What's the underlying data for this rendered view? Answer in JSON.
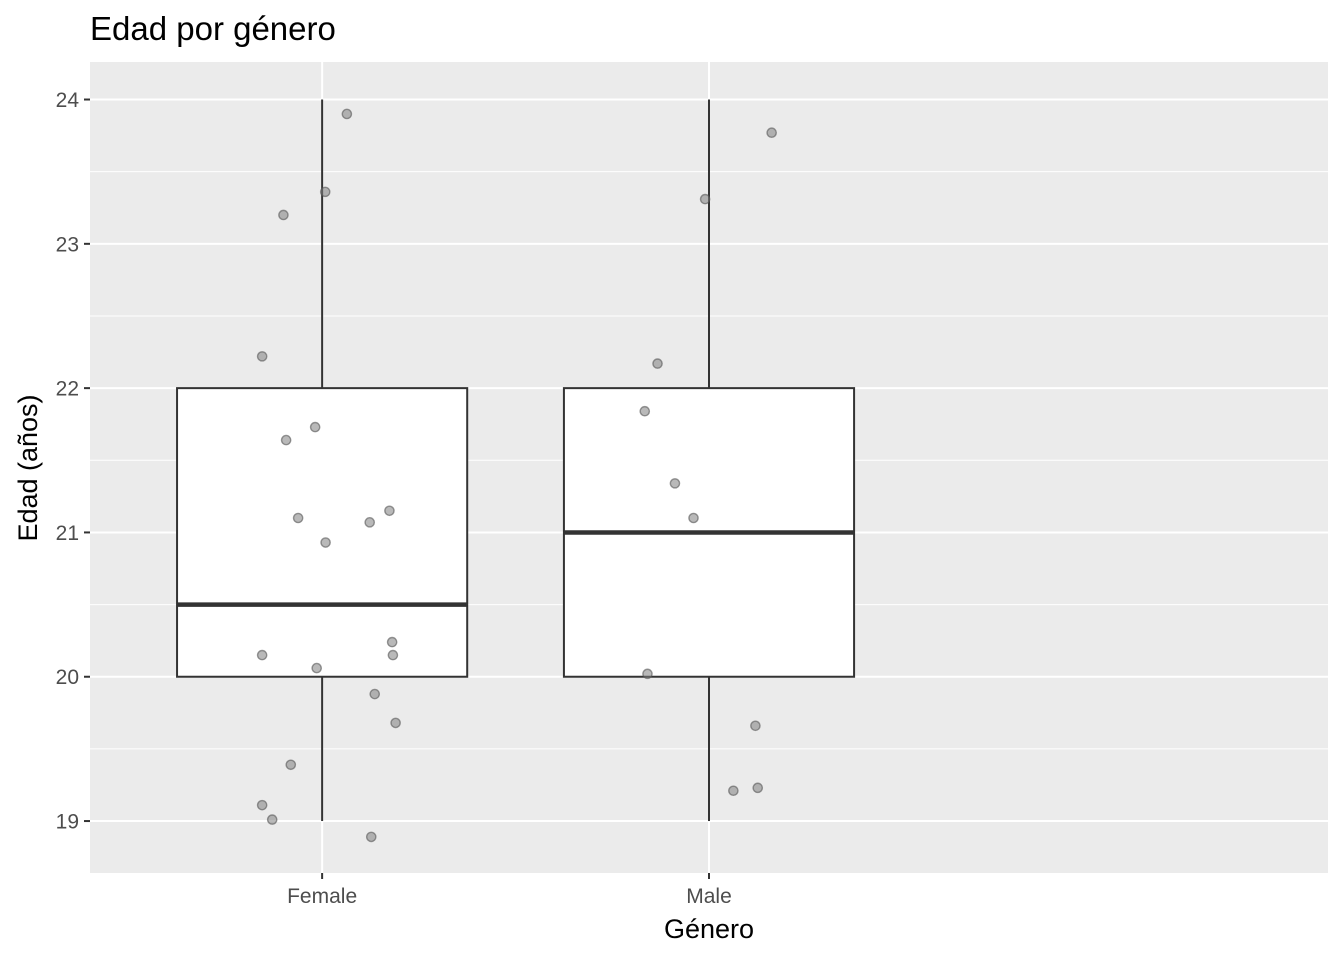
{
  "chart_data": {
    "type": "box",
    "title": "Edad por género",
    "xlabel": "Género",
    "ylabel": "Edad (años)",
    "categories": [
      "Female",
      "Male"
    ],
    "ylim": [
      18.64,
      24.26
    ],
    "yticks": [
      19,
      20,
      21,
      22,
      23,
      24
    ],
    "grid": true,
    "legend": "none",
    "boxes": [
      {
        "category": "Female",
        "whisker_low": 19,
        "q1": 20,
        "median": 20.5,
        "q3": 22,
        "whisker_high": 24
      },
      {
        "category": "Male",
        "whisker_low": 19,
        "q1": 20,
        "median": 21,
        "q3": 22,
        "whisker_high": 24
      }
    ],
    "points": [
      {
        "category": "Female",
        "offset": 0.064,
        "y": 23.9
      },
      {
        "category": "Female",
        "offset": 0.008,
        "y": 23.36
      },
      {
        "category": "Female",
        "offset": -0.1,
        "y": 23.2
      },
      {
        "category": "Female",
        "offset": -0.155,
        "y": 22.22
      },
      {
        "category": "Female",
        "offset": -0.018,
        "y": 21.73
      },
      {
        "category": "Female",
        "offset": -0.093,
        "y": 21.64
      },
      {
        "category": "Female",
        "offset": -0.062,
        "y": 21.1
      },
      {
        "category": "Female",
        "offset": 0.174,
        "y": 21.15
      },
      {
        "category": "Female",
        "offset": 0.123,
        "y": 21.07
      },
      {
        "category": "Female",
        "offset": 0.009,
        "y": 20.93
      },
      {
        "category": "Female",
        "offset": 0.181,
        "y": 20.24
      },
      {
        "category": "Female",
        "offset": -0.155,
        "y": 20.15
      },
      {
        "category": "Female",
        "offset": 0.183,
        "y": 20.15
      },
      {
        "category": "Female",
        "offset": -0.014,
        "y": 20.06
      },
      {
        "category": "Female",
        "offset": 0.136,
        "y": 19.88
      },
      {
        "category": "Female",
        "offset": 0.19,
        "y": 19.68
      },
      {
        "category": "Female",
        "offset": -0.081,
        "y": 19.39
      },
      {
        "category": "Female",
        "offset": -0.155,
        "y": 19.11
      },
      {
        "category": "Female",
        "offset": -0.129,
        "y": 19.01
      },
      {
        "category": "Female",
        "offset": 0.127,
        "y": 18.89
      },
      {
        "category": "Male",
        "offset": 0.162,
        "y": 23.77
      },
      {
        "category": "Male",
        "offset": -0.01,
        "y": 23.31
      },
      {
        "category": "Male",
        "offset": -0.133,
        "y": 22.17
      },
      {
        "category": "Male",
        "offset": -0.166,
        "y": 21.84
      },
      {
        "category": "Male",
        "offset": -0.088,
        "y": 21.34
      },
      {
        "category": "Male",
        "offset": -0.04,
        "y": 21.1
      },
      {
        "category": "Male",
        "offset": -0.159,
        "y": 20.02
      },
      {
        "category": "Male",
        "offset": 0.12,
        "y": 19.66
      },
      {
        "category": "Male",
        "offset": 0.126,
        "y": 19.23
      },
      {
        "category": "Male",
        "offset": 0.063,
        "y": 19.21
      }
    ],
    "colors": {
      "panel": "#ebebeb",
      "grid": "#ffffff",
      "box_fill": "#ffffff",
      "box_line": "#333333",
      "point": "#7f7f7f",
      "tick_text": "#4d4d4d",
      "tick_mark": "#333333"
    }
  }
}
